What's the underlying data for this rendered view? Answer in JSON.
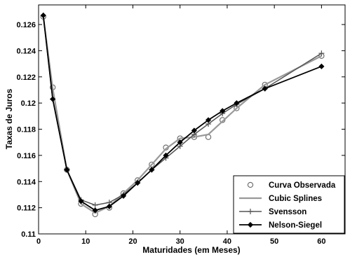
{
  "chart_data": {
    "type": "line",
    "xlabel": "Maturidades (em Meses)",
    "ylabel": "Taxas de Juros",
    "xlim": [
      0,
      65
    ],
    "ylim": [
      0.11,
      0.1275
    ],
    "xticks": [
      0,
      10,
      20,
      30,
      40,
      50,
      60
    ],
    "yticks": [
      0.11,
      0.112,
      0.114,
      0.116,
      0.118,
      0.12,
      0.122,
      0.124,
      0.126
    ],
    "xtick_labels": [
      "0",
      "10",
      "20",
      "30",
      "40",
      "50",
      "60"
    ],
    "ytick_labels": [
      "0.11",
      "0.112",
      "0.114",
      "0.116",
      "0.118",
      "0.12",
      "0.122",
      "0.124",
      "0.126"
    ],
    "legend_position": "bottom-right",
    "series": [
      {
        "name": "Curva Observada",
        "style": "markers",
        "marker": "circle",
        "color": "#666666",
        "x": [
          1,
          3,
          6,
          9,
          12,
          15,
          18,
          21,
          24,
          27,
          30,
          33,
          36,
          39,
          42,
          48,
          60
        ],
        "y": [
          0.1266,
          0.1212,
          0.1149,
          0.1123,
          0.1115,
          0.112,
          0.1131,
          0.1141,
          0.1153,
          0.1166,
          0.1173,
          0.1174,
          0.1174,
          0.1187,
          0.1196,
          0.1214,
          0.1236
        ]
      },
      {
        "name": "Cubic Splines",
        "style": "line",
        "color": "#999999",
        "x": [
          1,
          3,
          6,
          9,
          12,
          15,
          18,
          21,
          24,
          27,
          30,
          33,
          36,
          39,
          42,
          48,
          60
        ],
        "y": [
          0.1266,
          0.1211,
          0.1149,
          0.1123,
          0.1116,
          0.1121,
          0.1131,
          0.1141,
          0.1153,
          0.1165,
          0.1173,
          0.1174,
          0.1176,
          0.1186,
          0.1196,
          0.1214,
          0.1236
        ]
      },
      {
        "name": "Svensson",
        "style": "line",
        "marker": "plus",
        "color": "#555555",
        "x": [
          1,
          3,
          6,
          9,
          12,
          15,
          18,
          21,
          24,
          27,
          30,
          33,
          36,
          39,
          42,
          48,
          60
        ],
        "y": [
          0.1267,
          0.1203,
          0.1149,
          0.1126,
          0.1122,
          0.1124,
          0.113,
          0.1139,
          0.1149,
          0.1158,
          0.1167,
          0.1176,
          0.1184,
          0.1192,
          0.1199,
          0.1211,
          0.1238
        ]
      },
      {
        "name": "Nelson-Siegel",
        "style": "line",
        "marker": "diamond",
        "color": "#000000",
        "x": [
          1,
          3,
          6,
          9,
          12,
          15,
          18,
          21,
          24,
          27,
          30,
          33,
          36,
          39,
          42,
          48,
          60
        ],
        "y": [
          0.1267,
          0.1203,
          0.1149,
          0.1125,
          0.1118,
          0.1121,
          0.1129,
          0.1139,
          0.1149,
          0.116,
          0.117,
          0.1179,
          0.1187,
          0.1194,
          0.12,
          0.1211,
          0.1228
        ]
      }
    ]
  }
}
